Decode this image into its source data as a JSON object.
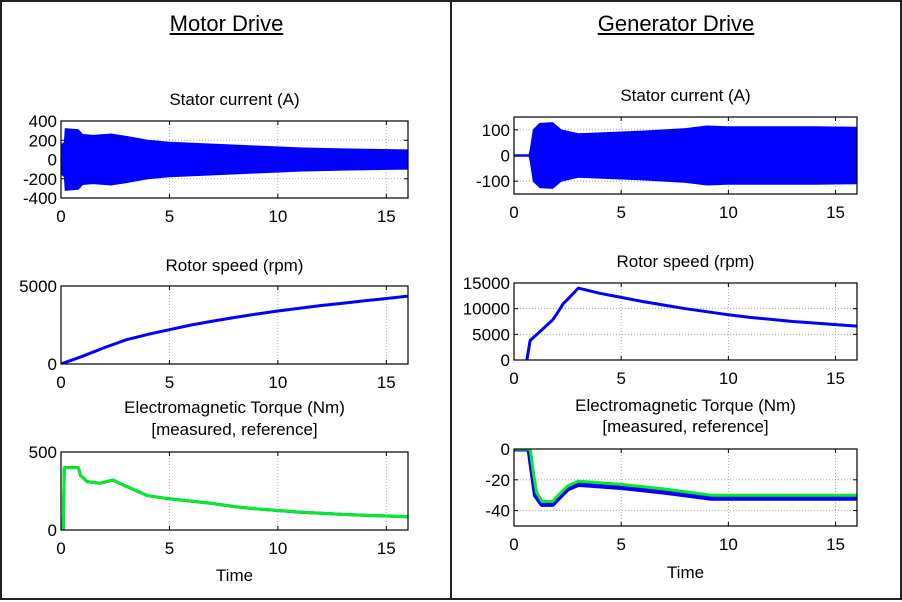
{
  "panels": [
    {
      "title": "Motor Drive"
    },
    {
      "title": "Generator Drive"
    }
  ],
  "colors": {
    "measured": "#0000ff",
    "reference": "#00ee22",
    "grid": "#999999",
    "axis": "#000000"
  },
  "chart_data": [
    {
      "id": "motor-stator",
      "panel": "Motor Drive",
      "type": "area",
      "title": "Stator current (A)",
      "xlabel": "",
      "ylabel": "",
      "xlim": [
        0,
        16
      ],
      "ylim": [
        -400,
        400
      ],
      "xticks": [
        0,
        5,
        10,
        15
      ],
      "yticks": [
        400,
        200,
        0,
        -200,
        -400
      ],
      "grid": true,
      "series": [
        {
          "name": "envelope",
          "x": [
            0,
            0.15,
            0.2,
            0.8,
            1.0,
            1.5,
            2.3,
            3,
            4,
            5,
            7,
            9,
            11,
            13,
            16
          ],
          "upper": [
            150,
            180,
            320,
            310,
            260,
            250,
            265,
            240,
            200,
            180,
            160,
            140,
            120,
            110,
            100
          ],
          "lower": [
            -150,
            -180,
            -320,
            -310,
            -260,
            -250,
            -265,
            -240,
            -200,
            -180,
            -160,
            -140,
            -120,
            -110,
            -100
          ]
        }
      ]
    },
    {
      "id": "motor-speed",
      "panel": "Motor Drive",
      "type": "line",
      "title": "Rotor speed (rpm)",
      "xlim": [
        0,
        16
      ],
      "ylim": [
        0,
        5000
      ],
      "xticks": [
        0,
        5,
        10,
        15
      ],
      "yticks": [
        5000,
        0
      ],
      "grid": true,
      "series": [
        {
          "name": "speed",
          "x": [
            0,
            1,
            2,
            3,
            4,
            5,
            6,
            7,
            8,
            9,
            10,
            11,
            12,
            13,
            14,
            15,
            16
          ],
          "y": [
            0,
            500,
            1050,
            1550,
            1900,
            2200,
            2500,
            2750,
            2980,
            3200,
            3400,
            3580,
            3750,
            3900,
            4050,
            4200,
            4350
          ]
        }
      ]
    },
    {
      "id": "motor-torque",
      "panel": "Motor Drive",
      "type": "line",
      "title": "Electromagnetic Torque (Nm)",
      "subtitle": "[measured, reference]",
      "xlabel": "Time",
      "xlim": [
        0,
        16
      ],
      "ylim": [
        0,
        500
      ],
      "xticks": [
        0,
        5,
        10,
        15
      ],
      "yticks": [
        500,
        0
      ],
      "grid": true,
      "series": [
        {
          "name": "measured",
          "x": [
            0,
            0.1,
            0.15,
            0.8,
            0.9,
            1.2,
            1.8,
            2.4,
            3.0,
            4.0,
            5,
            6,
            7,
            8,
            9,
            10,
            11,
            12,
            13,
            14,
            15,
            16
          ],
          "y": [
            0,
            0,
            400,
            400,
            350,
            310,
            300,
            320,
            280,
            220,
            200,
            185,
            170,
            150,
            135,
            125,
            115,
            108,
            100,
            95,
            90,
            85
          ]
        },
        {
          "name": "reference",
          "x": [
            0,
            0.1,
            0.15,
            0.8,
            0.9,
            1.2,
            1.8,
            2.4,
            3.0,
            4.0,
            5,
            6,
            7,
            8,
            9,
            10,
            11,
            12,
            13,
            14,
            15,
            16
          ],
          "y": [
            0,
            0,
            400,
            400,
            350,
            310,
            300,
            320,
            280,
            220,
            200,
            185,
            170,
            150,
            135,
            125,
            115,
            108,
            100,
            95,
            90,
            85
          ]
        }
      ]
    },
    {
      "id": "gen-stator",
      "panel": "Generator Drive",
      "type": "area",
      "title": "Stator current (A)",
      "xlim": [
        0,
        16
      ],
      "ylim": [
        -150,
        150
      ],
      "xticks": [
        0,
        5,
        10,
        15
      ],
      "yticks": [
        100,
        0,
        -100
      ],
      "grid": true,
      "series": [
        {
          "name": "envelope",
          "x": [
            0,
            0.7,
            0.75,
            0.9,
            1.2,
            1.8,
            2.2,
            3.0,
            4,
            6,
            8,
            9,
            10,
            12,
            14,
            16
          ],
          "upper": [
            3,
            3,
            20,
            100,
            125,
            128,
            100,
            85,
            88,
            95,
            105,
            115,
            112,
            112,
            112,
            110
          ],
          "lower": [
            -3,
            -3,
            -20,
            -100,
            -125,
            -128,
            -100,
            -85,
            -88,
            -95,
            -105,
            -115,
            -112,
            -112,
            -112,
            -110
          ]
        }
      ]
    },
    {
      "id": "gen-speed",
      "panel": "Generator Drive",
      "type": "line",
      "title": "Rotor speed (rpm)",
      "xlim": [
        0,
        16
      ],
      "ylim": [
        0,
        15000
      ],
      "xticks": [
        0,
        5,
        10,
        15
      ],
      "yticks": [
        15000,
        10000,
        5000,
        0
      ],
      "grid": true,
      "series": [
        {
          "name": "speed",
          "x": [
            0.6,
            0.75,
            1.2,
            1.8,
            2.0,
            2.3,
            2.5,
            3.0,
            4,
            5,
            6,
            7,
            8,
            9,
            10,
            11,
            12,
            13,
            14,
            15,
            16
          ],
          "y": [
            0,
            3800,
            5500,
            7800,
            9000,
            11000,
            11800,
            14000,
            13000,
            12200,
            11400,
            10700,
            10000,
            9400,
            8800,
            8300,
            7900,
            7500,
            7200,
            6900,
            6600
          ]
        }
      ]
    },
    {
      "id": "gen-torque",
      "panel": "Generator Drive",
      "type": "line",
      "title": "Electromagnetic Torque (Nm)",
      "subtitle": "[measured, reference]",
      "xlabel": "Time",
      "xlim": [
        0,
        16
      ],
      "ylim": [
        -50,
        0
      ],
      "xticks": [
        0,
        5,
        10,
        15
      ],
      "yticks": [
        0,
        -20,
        -40
      ],
      "grid": true,
      "series": [
        {
          "name": "measured",
          "x": [
            0,
            0.7,
            0.85,
            1.0,
            1.3,
            1.8,
            2.0,
            2.5,
            3.0,
            5,
            7,
            9.2,
            10,
            12,
            14,
            16
          ],
          "y": [
            0,
            0,
            -15,
            -30,
            -36,
            -36,
            -33,
            -26,
            -23,
            -25,
            -28,
            -32,
            -32,
            -32,
            -32,
            -32
          ]
        },
        {
          "name": "reference",
          "x": [
            0,
            0.75,
            0.9,
            1.05,
            1.3,
            1.8,
            2.0,
            2.5,
            3.0,
            5,
            7,
            9.2,
            10,
            12,
            14,
            16
          ],
          "y": [
            0,
            0,
            -15,
            -28,
            -34,
            -34,
            -31,
            -24,
            -21,
            -23,
            -26,
            -30,
            -30,
            -30,
            -30,
            -30
          ]
        }
      ]
    }
  ]
}
